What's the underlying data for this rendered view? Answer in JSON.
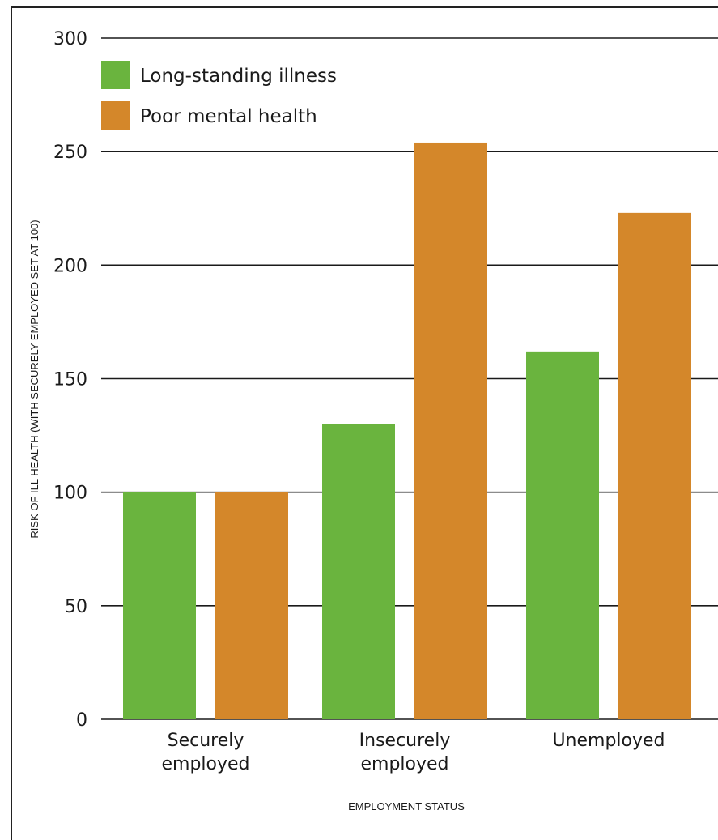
{
  "chart_data": {
    "type": "bar",
    "title": "",
    "xlabel": "EMPLOYMENT STATUS",
    "ylabel": "RISK OF ILL HEALTH (WITH SECURELY EMPLOYED SET AT 100)",
    "categories": [
      [
        "Securely",
        "employed"
      ],
      [
        "Insecurely",
        "employed"
      ],
      [
        "Unemployed"
      ]
    ],
    "series": [
      {
        "name": "Long-standing illness",
        "color": "#6ab43e",
        "values": [
          100,
          130,
          162
        ]
      },
      {
        "name": "Poor mental health",
        "color": "#d4872a",
        "values": [
          100,
          254,
          223
        ]
      }
    ],
    "ylim": [
      0,
      300
    ],
    "yticks": [
      0,
      50,
      100,
      150,
      200,
      250,
      300
    ],
    "grid": true,
    "legend_position": "top-left"
  }
}
